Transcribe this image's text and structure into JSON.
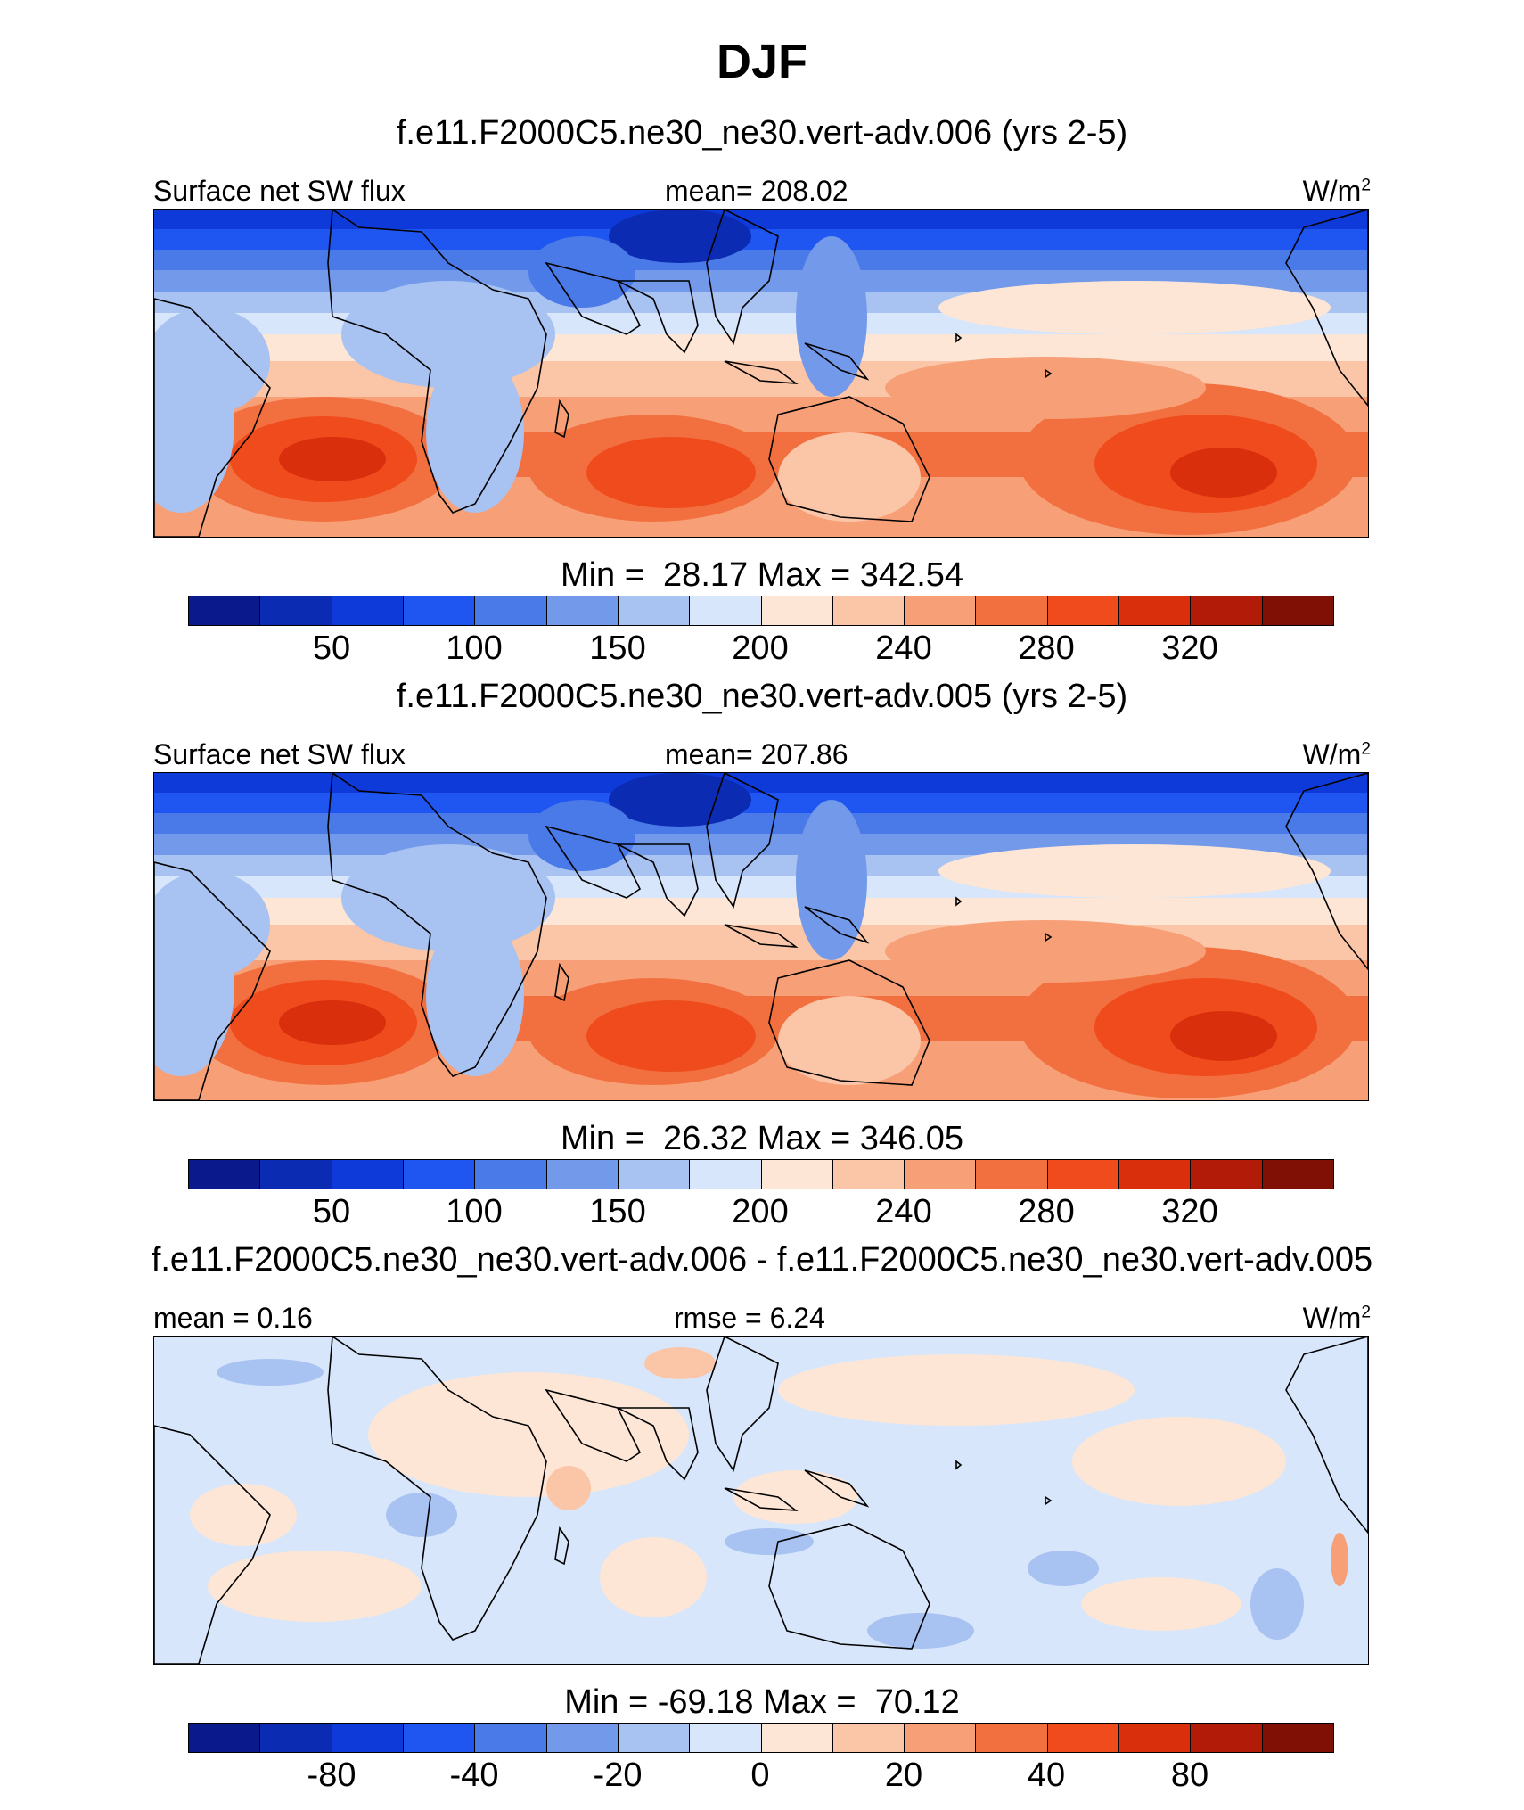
{
  "title": "DJF",
  "colormap": [
    "#0a1a8c",
    "#0b2cb2",
    "#0d3ad9",
    "#1f55f0",
    "#4a7ae8",
    "#7399ea",
    "#a8c2f2",
    "#d7e6fa",
    "#fde6d5",
    "#fbc6a8",
    "#f7a078",
    "#f2703f",
    "#ef4b1c",
    "#da2f0c",
    "#b11b08",
    "#800f05"
  ],
  "panels": [
    {
      "title": "f.e11.F2000C5.ne30_ne30.vert-adv.006 (yrs 2-5)",
      "left_label": "Surface net SW flux",
      "center_label": "mean= 208.02",
      "units": "W/m",
      "units_sup": "2",
      "map_kind": "field",
      "minmax": "Min =  28.17 Max = 342.54",
      "ticks": [
        "50",
        "100",
        "150",
        "200",
        "240",
        "280",
        "320"
      ]
    },
    {
      "title": "f.e11.F2000C5.ne30_ne30.vert-adv.005 (yrs 2-5)",
      "left_label": "Surface net SW flux",
      "center_label": "mean= 207.86",
      "units": "W/m",
      "units_sup": "2",
      "map_kind": "field",
      "minmax": "Min =  26.32 Max = 346.05",
      "ticks": [
        "50",
        "100",
        "150",
        "200",
        "240",
        "280",
        "320"
      ]
    },
    {
      "title": "f.e11.F2000C5.ne30_ne30.vert-adv.006 - f.e11.F2000C5.ne30_ne30.vert-adv.005",
      "left_label": "mean =   0.16",
      "center_label": "rmse =   6.24",
      "units": "W/m",
      "units_sup": "2",
      "map_kind": "difference",
      "minmax": "Min = -69.18 Max =  70.12",
      "ticks": [
        "-80",
        "-40",
        "-20",
        "0",
        "20",
        "40",
        "80"
      ]
    }
  ]
}
